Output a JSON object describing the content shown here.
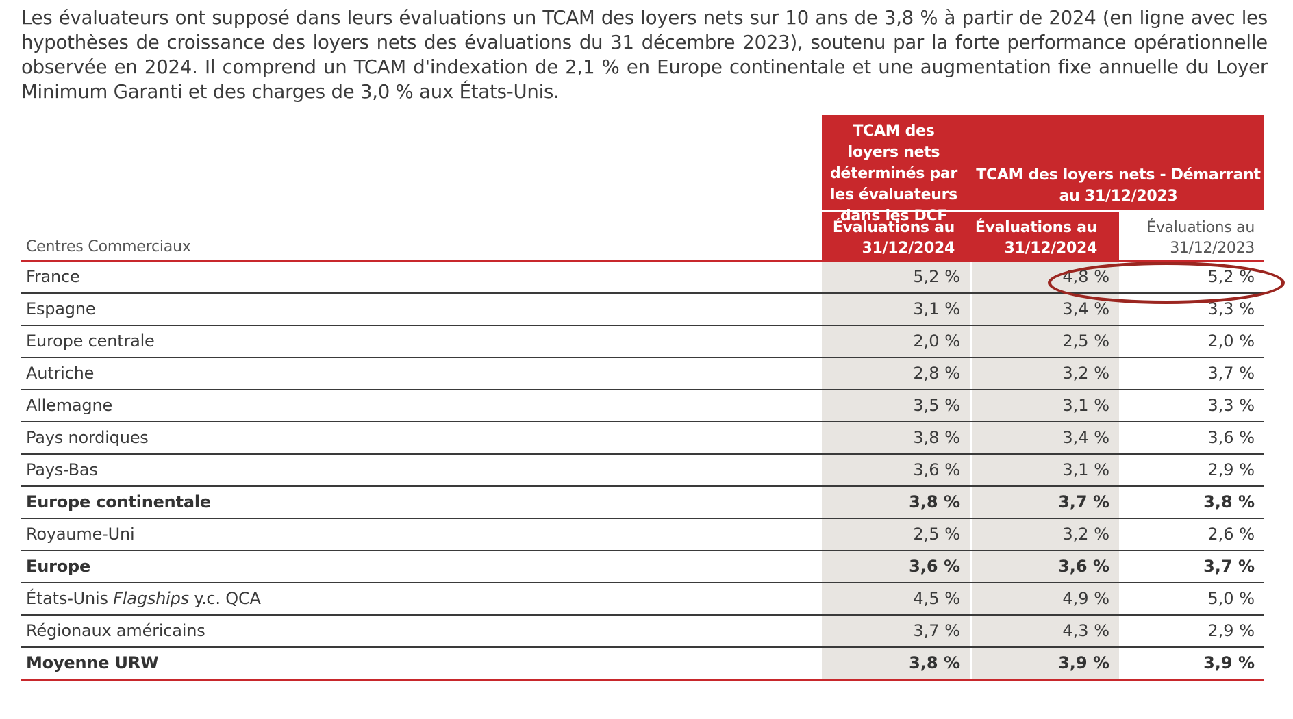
{
  "intro": "Les évaluateurs ont supposé dans leurs évaluations un TCAM des loyers nets sur 10 ans de 3,8 % à partir de 2024 (en ligne avec les hypothèses de croissance des loyers nets des évaluations du 31 décembre 2023), soutenu par la forte performance opérationnelle observée en 2024. Il comprend un TCAM d'indexation de 2,1 % en Europe continentale et une augmentation fixe annuelle du Loyer Minimum Garanti et des charges de 3,0 % aux États-Unis.",
  "header": {
    "group1": "TCAM des loyers nets déterminés par les évaluateurs dans les DCF",
    "group2": "TCAM des loyers nets - Démarrant au 31/12/2023",
    "col1_line1": "Évaluations au",
    "col1_line2": "31/12/2024",
    "col2_line1": "Évaluations au",
    "col2_line2": "31/12/2024",
    "col3_line1": "Évaluations au",
    "col3_line2": "31/12/2023",
    "row_header": "Centres Commerciaux"
  },
  "rows": [
    {
      "label": "France",
      "v1": "5,2 %",
      "v2": "4,8 %",
      "v3": "5,2 %",
      "bold": false
    },
    {
      "label": "Espagne",
      "v1": "3,1 %",
      "v2": "3,4 %",
      "v3": "3,3 %",
      "bold": false
    },
    {
      "label": "Europe centrale",
      "v1": "2,0 %",
      "v2": "2,5 %",
      "v3": "2,0 %",
      "bold": false
    },
    {
      "label": "Autriche",
      "v1": "2,8 %",
      "v2": "3,2 %",
      "v3": "3,7 %",
      "bold": false
    },
    {
      "label": "Allemagne",
      "v1": "3,5 %",
      "v2": "3,1 %",
      "v3": "3,3 %",
      "bold": false
    },
    {
      "label": "Pays nordiques",
      "v1": "3,8 %",
      "v2": "3,4 %",
      "v3": "3,6 %",
      "bold": false
    },
    {
      "label": "Pays-Bas",
      "v1": "3,6 %",
      "v2": "3,1 %",
      "v3": "2,9 %",
      "bold": false
    },
    {
      "label": "Europe continentale",
      "v1": "3,8 %",
      "v2": "3,7 %",
      "v3": "3,8 %",
      "bold": true
    },
    {
      "label": "Royaume-Uni",
      "v1": "2,5 %",
      "v2": "3,2 %",
      "v3": "2,6 %",
      "bold": false
    },
    {
      "label": "Europe",
      "v1": "3,6 %",
      "v2": "3,6 %",
      "v3": "3,7 %",
      "bold": true
    },
    {
      "label_pre": "États-Unis ",
      "label_em": "Flagships",
      "label_post": " y.c. QCA",
      "v1": "4,5 %",
      "v2": "4,9 %",
      "v3": "5,0 %",
      "bold": false
    },
    {
      "label": "Régionaux américains",
      "v1": "3,7 %",
      "v2": "4,3 %",
      "v3": "2,9 %",
      "bold": false
    },
    {
      "label": "Moyenne URW",
      "v1": "3,8 %",
      "v2": "3,9 %",
      "v3": "3,9 %",
      "bold": true
    }
  ],
  "colors": {
    "accent": "#c8282c",
    "shade": "#e8e5e1",
    "annotation": "#9b2620"
  }
}
